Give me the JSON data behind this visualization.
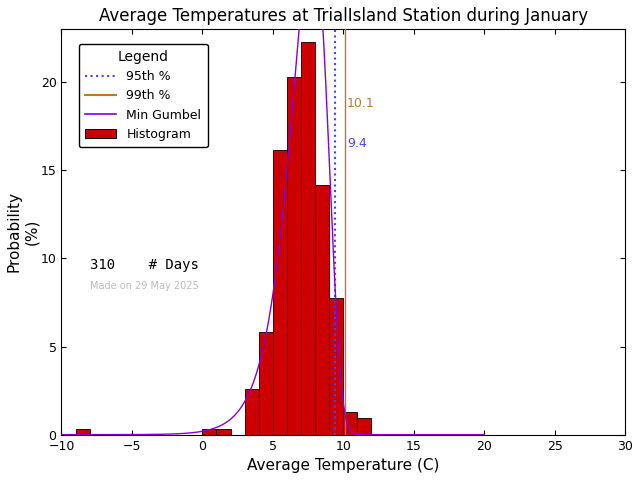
{
  "title": "Average Temperatures at TrialIsland Station during January",
  "xlabel": "Average Temperature (C)",
  "ylabel": "Probability\n(%)",
  "xlim": [
    -10,
    30
  ],
  "ylim": [
    0,
    23
  ],
  "xticks": [
    -10,
    -5,
    0,
    5,
    10,
    15,
    20,
    25,
    30
  ],
  "yticks": [
    0,
    5,
    10,
    15,
    20
  ],
  "bar_lefts": [
    -9,
    -8,
    -7,
    -6,
    -5,
    -4,
    -3,
    -2,
    -1,
    0,
    1,
    2,
    3,
    4,
    5,
    6,
    7,
    8,
    9,
    10,
    11
  ],
  "bar_heights": [
    0.32,
    0.0,
    0.0,
    0.0,
    0.0,
    0.0,
    0.0,
    0.0,
    0.0,
    0.32,
    0.32,
    0.0,
    2.58,
    5.81,
    16.13,
    20.32,
    22.26,
    14.19,
    7.74,
    1.29,
    0.97
  ],
  "bar_color": "#cc0000",
  "bar_edgecolor": "#000000",
  "p95": 9.4,
  "p99": 10.1,
  "p95_color": "#4444ff",
  "p99_color": "#b87a30",
  "p95_label": "9.4",
  "p99_label": "10.1",
  "n_days": 310,
  "gumbel_mu": 7.8,
  "gumbel_beta": 1.3,
  "gumbel_color": "#8800cc",
  "date_text": "Made on 29 May 2025",
  "legend_fontsize": 9,
  "title_fontsize": 12,
  "axis_fontsize": 11,
  "background_color": "#ffffff"
}
